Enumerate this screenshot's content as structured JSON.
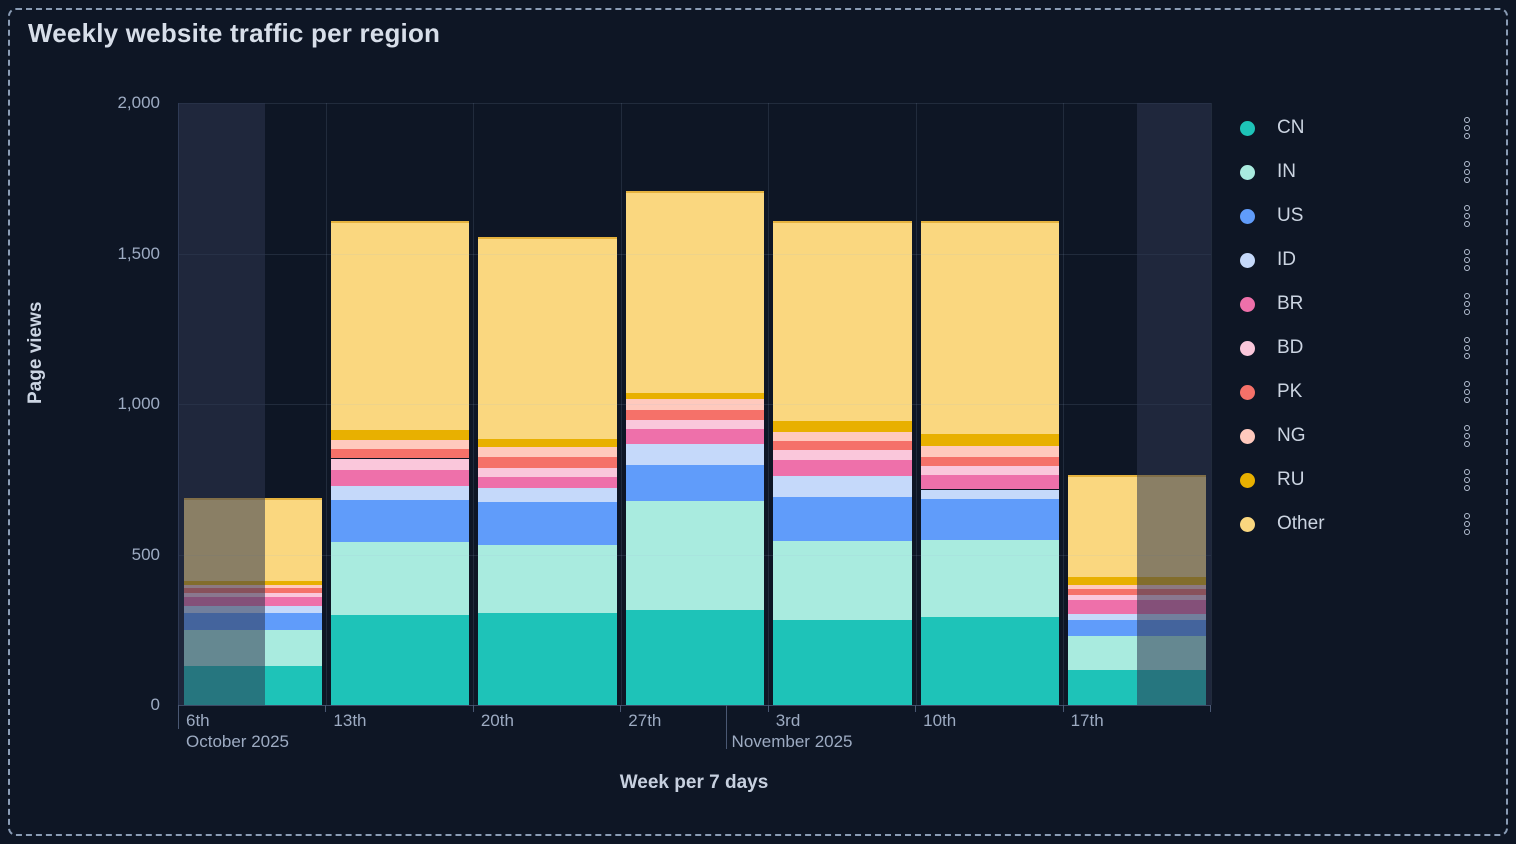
{
  "title": "Weekly website traffic per region",
  "colors": {
    "background": "#0E1625",
    "frame_border": "#8A9CB5",
    "grid": "rgba(164,184,214,0.13)",
    "faded_overlay": "rgba(45,55,80,0.55)"
  },
  "y_axis": {
    "title": "Page views",
    "ticks": [
      {
        "label": "2,000",
        "value": 2000
      },
      {
        "label": "1,500",
        "value": 1500
      },
      {
        "label": "1,000",
        "value": 1000
      },
      {
        "label": "500",
        "value": 500
      },
      {
        "label": "0",
        "value": 0
      }
    ]
  },
  "x_axis": {
    "title": "Week per 7 days",
    "day_labels": [
      "6th",
      "13th",
      "20th",
      "27th",
      "3rd",
      "10th",
      "17th"
    ],
    "months": [
      {
        "label": "October 2025",
        "label_slot": 0,
        "tick_slot_frac": null
      },
      {
        "label": "November 2025",
        "label_slot": null,
        "tick_slot_frac": 3.714
      }
    ]
  },
  "legend": {
    "menu_icon": "kebab-menu-icon",
    "items": [
      {
        "label": "CN",
        "color": "#1EC3B8"
      },
      {
        "label": "IN",
        "color": "#A9EBDF"
      },
      {
        "label": "US",
        "color": "#609CFA"
      },
      {
        "label": "ID",
        "color": "#C5D9FA"
      },
      {
        "label": "BR",
        "color": "#EE70AA"
      },
      {
        "label": "BD",
        "color": "#FAC7DB"
      },
      {
        "label": "PK",
        "color": "#F57169"
      },
      {
        "label": "NG",
        "color": "#FFC9BD"
      },
      {
        "label": "RU",
        "color": "#E8B000"
      },
      {
        "label": "Other",
        "color": "#FAD77F"
      }
    ]
  },
  "chart_data": {
    "type": "bar",
    "stacked": true,
    "title": "Weekly website traffic per region",
    "xlabel": "Week per 7 days",
    "ylabel": "Page views",
    "ylim": [
      0,
      2000
    ],
    "grid": true,
    "legend_position": "right",
    "categories": [
      "6th Oct",
      "13th Oct",
      "20th Oct",
      "27th Oct",
      "3rd Nov",
      "10th Nov",
      "17th Nov"
    ],
    "series": [
      {
        "name": "CN",
        "color": "#1EC3B8",
        "values": [
          130,
          300,
          305,
          316,
          282,
          291,
          116
        ]
      },
      {
        "name": "IN",
        "color": "#A9EBDF",
        "values": [
          120,
          242,
          227,
          363,
          264,
          257,
          113
        ]
      },
      {
        "name": "US",
        "color": "#609CFA",
        "values": [
          57,
          139,
          141,
          119,
          144,
          135,
          53
        ]
      },
      {
        "name": "ID",
        "color": "#C5D9FA",
        "values": [
          22,
          46,
          48,
          69,
          71,
          33,
          22
        ]
      },
      {
        "name": "BR",
        "color": "#EE70AA",
        "values": [
          29,
          53,
          37,
          50,
          53,
          47,
          44
        ]
      },
      {
        "name": "BD",
        "color": "#FAC7DB",
        "values": [
          13,
          39,
          30,
          31,
          33,
          31,
          17
        ]
      },
      {
        "name": "PK",
        "color": "#F57169",
        "values": [
          17,
          33,
          35,
          33,
          31,
          31,
          22
        ]
      },
      {
        "name": "NG",
        "color": "#FFC9BD",
        "values": [
          11,
          29,
          33,
          35,
          30,
          36,
          11
        ]
      },
      {
        "name": "RU",
        "color": "#E8B000",
        "values": [
          13,
          32,
          28,
          22,
          37,
          40,
          26
        ]
      },
      {
        "name": "Other",
        "color": "#FAD77F",
        "values": [
          276,
          695,
          670,
          670,
          663,
          708,
          340
        ]
      }
    ],
    "totals": [
      688,
      1608,
      1554,
      1708,
      1608,
      1609,
      764
    ],
    "faded_slot_ranges": [
      [
        0,
        0.583
      ],
      [
        6.5,
        7
      ]
    ]
  }
}
